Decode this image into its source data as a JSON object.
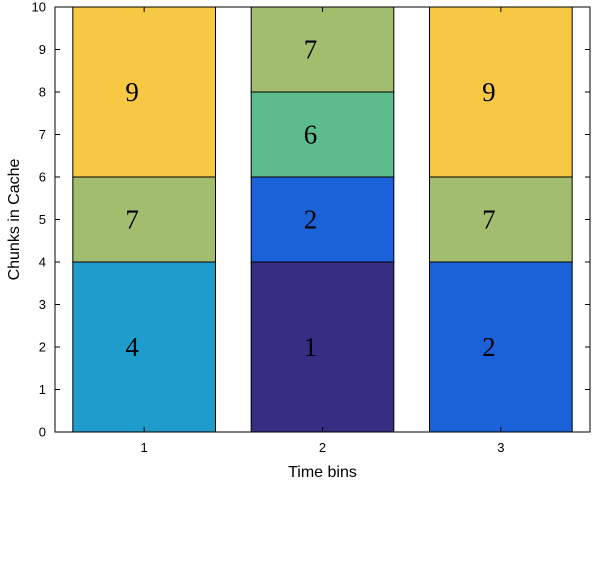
{
  "chart_data": {
    "type": "bar",
    "stacked": true,
    "xlabel": "Time bins",
    "ylabel": "Chunks in Cache",
    "ylim": [
      0,
      10
    ],
    "yticks": [
      0,
      1,
      2,
      3,
      4,
      5,
      6,
      7,
      8,
      9,
      10
    ],
    "categories": [
      "1",
      "2",
      "3"
    ],
    "grid": false,
    "bars": [
      {
        "category": "1",
        "segments": [
          {
            "label": "4",
            "from": 0,
            "to": 4,
            "color": "#1f9ccc"
          },
          {
            "label": "7",
            "from": 4,
            "to": 6,
            "color": "#a3bd6f"
          },
          {
            "label": "9",
            "from": 6,
            "to": 10,
            "color": "#f7c843"
          }
        ]
      },
      {
        "category": "2",
        "segments": [
          {
            "label": "1",
            "from": 0,
            "to": 4,
            "color": "#352e83"
          },
          {
            "label": "2",
            "from": 4,
            "to": 6,
            "color": "#1b62d9"
          },
          {
            "label": "6",
            "from": 6,
            "to": 8,
            "color": "#5cbc8d"
          },
          {
            "label": "7",
            "from": 8,
            "to": 10,
            "color": "#a3bd6f"
          }
        ]
      },
      {
        "category": "3",
        "segments": [
          {
            "label": "2",
            "from": 0,
            "to": 4,
            "color": "#1b62d9"
          },
          {
            "label": "7",
            "from": 4,
            "to": 6,
            "color": "#a3bd6f"
          },
          {
            "label": "9",
            "from": 6,
            "to": 10,
            "color": "#f7c843"
          }
        ]
      }
    ]
  }
}
